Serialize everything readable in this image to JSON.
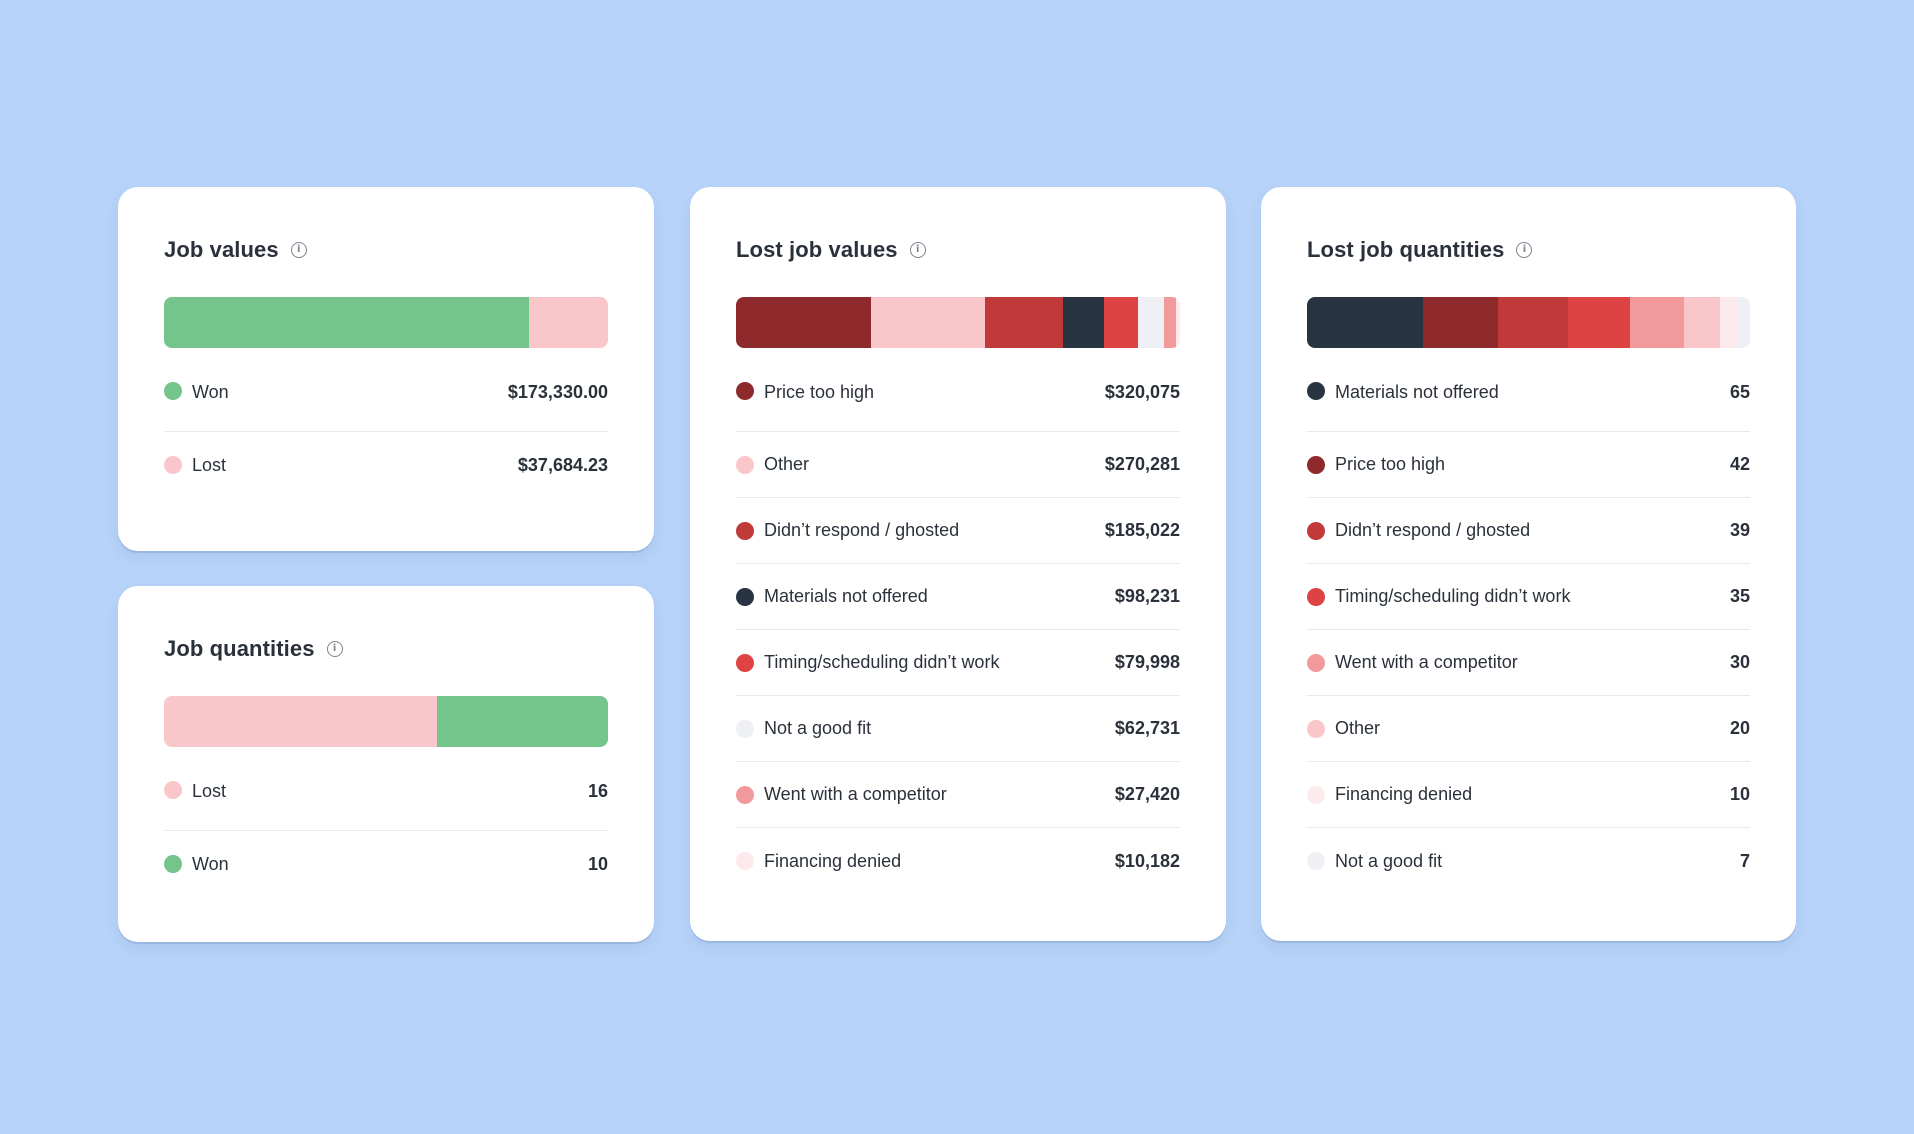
{
  "colors": {
    "background": "#b7d3f9",
    "won": "#74c48c",
    "lost": "#f9c6ca",
    "price_too_high": "#8e2a2c",
    "other": "#f9c6ca",
    "didnt_respond": "#c13a3a",
    "materials_not_offered": "#283442",
    "timing": "#de4344",
    "not_good_fit": "#eef0f5",
    "competitor": "#f29a9b",
    "financing_denied": "#fdeaec"
  },
  "job_values": {
    "title": "Job values",
    "icon": "info-icon",
    "items": [
      {
        "label": "Won",
        "value": "$173,330.00",
        "amount": 173330.0,
        "color": "#74c48c"
      },
      {
        "label": "Lost",
        "value": "$37,684.23",
        "amount": 37684.23,
        "color": "#f9c6ca"
      }
    ]
  },
  "job_quantities": {
    "title": "Job quantities",
    "icon": "info-icon",
    "items": [
      {
        "label": "Lost",
        "value": "16",
        "amount": 16,
        "color": "#f9c6ca"
      },
      {
        "label": "Won",
        "value": "10",
        "amount": 10,
        "color": "#74c48c"
      }
    ]
  },
  "lost_job_values": {
    "title": "Lost job values",
    "icon": "info-icon",
    "items": [
      {
        "label": "Price too high",
        "value": "$320,075",
        "amount": 320075,
        "color": "#8e2a2c"
      },
      {
        "label": "Other",
        "value": "$270,281",
        "amount": 270281,
        "color": "#f9c6ca"
      },
      {
        "label": "Didn’t respond / ghosted",
        "value": "$185,022",
        "amount": 185022,
        "color": "#c13a3a"
      },
      {
        "label": "Materials not offered",
        "value": "$98,231",
        "amount": 98231,
        "color": "#283442"
      },
      {
        "label": "Timing/scheduling didn’t work",
        "value": "$79,998",
        "amount": 79998,
        "color": "#de4344"
      },
      {
        "label": "Not a good fit",
        "value": "$62,731",
        "amount": 62731,
        "color": "#eef0f5"
      },
      {
        "label": "Went with a competitor",
        "value": "$27,420",
        "amount": 27420,
        "color": "#f29a9b"
      },
      {
        "label": "Financing denied",
        "value": "$10,182",
        "amount": 10182,
        "color": "#fdeaec"
      }
    ]
  },
  "lost_job_quantities": {
    "title": "Lost job quantities",
    "icon": "info-icon",
    "items": [
      {
        "label": "Materials not offered",
        "value": "65",
        "amount": 65,
        "color": "#283442"
      },
      {
        "label": "Price too high",
        "value": "42",
        "amount": 42,
        "color": "#8e2a2c"
      },
      {
        "label": "Didn’t respond / ghosted",
        "value": "39",
        "amount": 39,
        "color": "#c13a3a"
      },
      {
        "label": "Timing/scheduling didn’t work",
        "value": "35",
        "amount": 35,
        "color": "#de4344"
      },
      {
        "label": "Went with a competitor",
        "value": "30",
        "amount": 30,
        "color": "#f29a9b"
      },
      {
        "label": "Other",
        "value": "20",
        "amount": 20,
        "color": "#f9c6ca"
      },
      {
        "label": "Financing denied",
        "value": "10",
        "amount": 10,
        "color": "#fdeaec"
      },
      {
        "label": "Not a good fit",
        "value": "7",
        "amount": 7,
        "color": "#eef0f5"
      }
    ]
  }
}
